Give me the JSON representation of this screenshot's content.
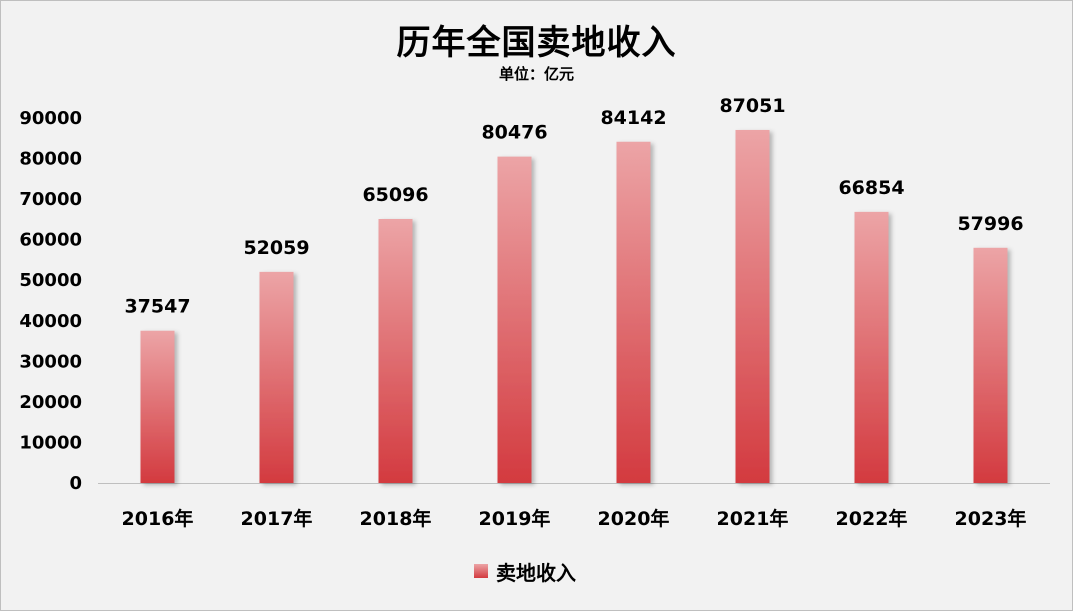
{
  "chart_data": {
    "type": "bar",
    "title": "历年全国卖地收入",
    "subtitle": "单位：亿元",
    "categories": [
      "2016年",
      "2017年",
      "2018年",
      "2019年",
      "2020年",
      "2021年",
      "2022年",
      "2023年"
    ],
    "series": [
      {
        "name": "卖地收入",
        "values": [
          37547,
          52059,
          65096,
          80476,
          84142,
          87051,
          66854,
          57996
        ]
      }
    ],
    "ylim": [
      0,
      90000
    ],
    "yticks": [
      0,
      10000,
      20000,
      30000,
      40000,
      50000,
      60000,
      70000,
      80000,
      90000
    ],
    "xlabel": "",
    "ylabel": "",
    "grid": false,
    "legend": "bottom",
    "data_labels": true,
    "colors": {
      "bar_top": "#eca4a6",
      "bar_bottom": "#d33a3f",
      "background": "#f2f2f2",
      "axis": "#bfbfbf"
    }
  }
}
